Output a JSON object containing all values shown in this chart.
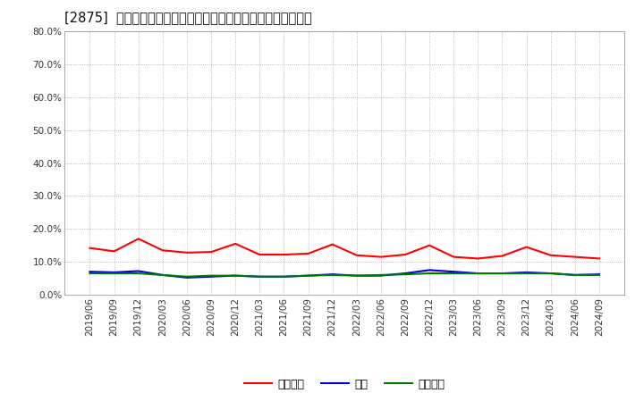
{
  "title": "[2875]  売上債権、在庫、買入債務の総資産に対する比率の推移",
  "x_labels": [
    "2019/06",
    "2019/09",
    "2019/12",
    "2020/03",
    "2020/06",
    "2020/09",
    "2020/12",
    "2021/03",
    "2021/06",
    "2021/09",
    "2021/12",
    "2022/03",
    "2022/06",
    "2022/09",
    "2022/12",
    "2023/03",
    "2023/06",
    "2023/09",
    "2023/12",
    "2024/03",
    "2024/06",
    "2024/09"
  ],
  "receivables": [
    14.2,
    13.2,
    17.0,
    13.5,
    12.8,
    13.0,
    15.5,
    12.2,
    12.2,
    12.5,
    15.3,
    12.0,
    11.5,
    12.2,
    15.0,
    11.5,
    11.0,
    11.8,
    14.5,
    12.0,
    11.5,
    11.0
  ],
  "inventory": [
    7.0,
    6.8,
    7.2,
    6.0,
    5.2,
    5.5,
    5.8,
    5.5,
    5.5,
    5.8,
    6.2,
    5.8,
    5.8,
    6.5,
    7.5,
    7.0,
    6.5,
    6.5,
    6.8,
    6.5,
    6.0,
    6.2
  ],
  "payables": [
    6.5,
    6.5,
    6.5,
    6.0,
    5.5,
    5.8,
    5.8,
    5.5,
    5.5,
    5.8,
    6.0,
    5.8,
    6.0,
    6.2,
    6.5,
    6.5,
    6.5,
    6.5,
    6.5,
    6.5,
    6.0,
    6.0
  ],
  "receivables_color": "#ff0000",
  "inventory_color": "#0000cc",
  "payables_color": "#007700",
  "ylim": [
    0,
    80
  ],
  "yticks": [
    0,
    10,
    20,
    30,
    40,
    50,
    60,
    70,
    80
  ],
  "ytick_labels": [
    "0.0%",
    "10.0%",
    "20.0%",
    "30.0%",
    "40.0%",
    "50.0%",
    "60.0%",
    "70.0%",
    "80.0%"
  ],
  "legend_receivables": "売上債権",
  "legend_inventory": "在庫",
  "legend_payables": "買入債務",
  "bg_color": "#ffffff",
  "grid_color": "#999999",
  "title_fontsize": 10.5,
  "axis_fontsize": 7.5,
  "legend_fontsize": 9,
  "line_width": 1.5
}
